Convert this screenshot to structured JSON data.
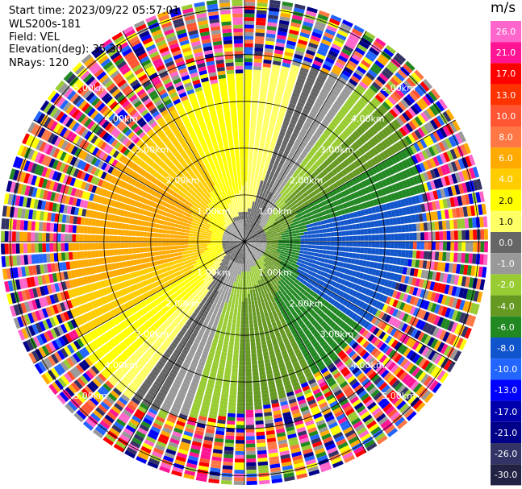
{
  "header": {
    "start_time": "Start time: 2023/09/22 05:57:01",
    "instrument": "WLS200s-181",
    "field": "Field: VEL",
    "elevation": "Elevation(deg): 35.30",
    "nrays": "NRays: 120"
  },
  "chart_data": {
    "type": "heatmap",
    "projection": "polar-ppi",
    "nrays": 120,
    "range_rings_km": [
      1.0,
      2.0,
      3.0,
      4.0,
      5.0
    ],
    "ring_labels": [
      "1.00km",
      "2.00km",
      "3.00km",
      "4.00km",
      "5.00km"
    ],
    "max_range_km": 5.2,
    "colorbar": {
      "unit": "m/s",
      "ticks": [
        "26.0",
        "21.0",
        "17.0",
        "13.0",
        "10.0",
        "8.0",
        "6.0",
        "4.0",
        "2.0",
        "1.0",
        "0.0",
        "-1.0",
        "-2.0",
        "-4.0",
        "-6.0",
        "-8.0",
        "-10.0",
        "-13.0",
        "-17.0",
        "-21.0",
        "-26.0",
        "-30.0"
      ],
      "colors": [
        "#ff66cc",
        "#ff1493",
        "#ff0000",
        "#ff3300",
        "#ff5533",
        "#ff7744",
        "#ffaa00",
        "#ffcc00",
        "#ffff00",
        "#ffff66",
        "#666666",
        "#999999",
        "#99cc33",
        "#669922",
        "#228822",
        "#1155cc",
        "#2266ff",
        "#0000ff",
        "#0000aa",
        "#000088",
        "#333366",
        "#222244"
      ]
    }
  }
}
